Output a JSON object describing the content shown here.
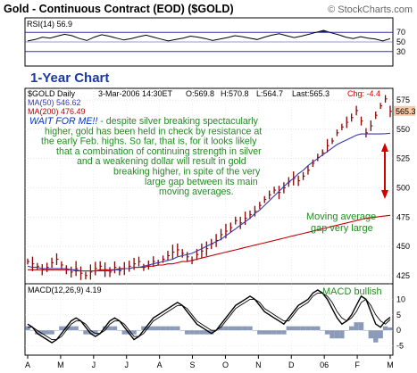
{
  "chart_data": {
    "type": "line",
    "title": "Gold - Continuous Contract (EOD) ($GOLD)",
    "watermark": "© StockCharts.com",
    "rsi": {
      "label": "RSI(14) 56.9",
      "ticks": [
        70,
        50,
        30
      ],
      "ylim": [
        0,
        100
      ],
      "values": [
        52,
        55,
        60,
        58,
        62,
        66,
        63,
        57,
        53,
        60,
        65,
        62,
        58,
        54,
        57,
        61,
        64,
        60,
        56,
        52,
        55,
        58,
        62,
        60,
        57,
        53,
        56,
        59,
        63,
        61,
        58,
        55,
        60,
        64,
        67,
        63,
        59,
        62,
        66,
        70,
        74,
        69,
        65,
        60,
        57,
        61,
        58,
        56,
        52,
        56.9
      ]
    },
    "price": {
      "period_label": "1-Year Chart",
      "info": {
        "symbol": "$GOLD Daily",
        "date": "3-Mar-2006 14:30ET",
        "open": "O:569.8",
        "high": "H:570.8",
        "low": "L:564.7",
        "last": "Last:565.3",
        "chg": "Chg: -4.4"
      },
      "ma50_label": "MA(50) 546.62",
      "ma200_label": "MA(200) 476.49",
      "last_price_label": "565.3",
      "ylim": [
        418,
        585
      ],
      "y_ticks": [
        425,
        450,
        475,
        500,
        525,
        550,
        575
      ],
      "close": [
        437,
        435,
        433,
        430,
        432,
        436,
        439,
        434,
        430,
        428,
        431,
        427,
        425,
        428,
        431,
        433,
        430,
        428,
        432,
        429,
        431,
        433,
        435,
        437,
        432,
        434,
        437,
        436,
        439,
        442,
        445,
        447,
        444,
        441,
        438,
        443,
        446,
        448,
        452,
        455,
        460,
        463,
        466,
        472,
        470,
        474,
        477,
        480,
        485,
        490,
        494,
        498,
        496,
        500,
        505,
        508,
        506,
        510,
        515,
        521,
        526,
        530,
        536,
        540,
        547,
        552,
        556,
        560,
        566,
        557,
        547,
        553,
        562,
        570,
        576,
        565.3
      ],
      "ma50": [
        433,
        432,
        432,
        431,
        431,
        431,
        431,
        431,
        431,
        430,
        430,
        429,
        429,
        429,
        429,
        429,
        429,
        429,
        430,
        430,
        431,
        431,
        432,
        432,
        433,
        434,
        435,
        436,
        437,
        438,
        439,
        441,
        442,
        443,
        444,
        446,
        448,
        450,
        452,
        454,
        456,
        459,
        462,
        465,
        468,
        471,
        474,
        478,
        481,
        485,
        489,
        493,
        497,
        501,
        505,
        508,
        512,
        515,
        519,
        522,
        525,
        528,
        531,
        534,
        537,
        539,
        541,
        543,
        545,
        546,
        546,
        546,
        546,
        546,
        546.3,
        546.62
      ],
      "ma200": [
        430,
        430,
        430,
        430,
        430,
        430,
        430,
        430,
        430,
        430,
        429,
        429,
        429,
        429,
        429,
        430,
        430,
        430,
        430,
        431,
        431,
        431,
        432,
        432,
        432,
        433,
        433,
        434,
        434,
        435,
        435,
        436,
        437,
        437,
        438,
        439,
        440,
        441,
        442,
        443,
        444,
        445,
        446,
        447,
        448,
        449,
        450,
        451,
        452,
        453,
        454,
        455,
        456,
        457,
        458,
        459,
        460,
        461,
        462,
        463,
        464,
        465,
        466,
        467,
        468,
        469,
        470,
        471,
        472,
        473,
        474,
        474.5,
        475,
        475.5,
        476,
        476.49
      ],
      "commentary_lines": [
        {
          "highlight": "WAIT FOR ME!!",
          "text": " - despite silver breaking spectacularly"
        },
        {
          "highlight": "",
          "text": "higher, gold has been held in check by resistance at"
        },
        {
          "highlight": "",
          "text": "the early Feb. highs. So far, that is, for it looks likely"
        },
        {
          "highlight": "",
          "text": "that a combination of continuing strength in silver"
        },
        {
          "highlight": "",
          "text": "and a weakening dollar will result in gold"
        },
        {
          "highlight": "",
          "text": "breaking higher, in spite of the very"
        },
        {
          "highlight": "",
          "text": "large gap between its main"
        },
        {
          "highlight": "",
          "text": "moving averages."
        }
      ],
      "annotation_gap": [
        "Moving average",
        "gap very large"
      ]
    },
    "macd": {
      "label": "MACD(12,26,9) 4.19",
      "annotation": "MACD bullish",
      "y_ticks": [
        10,
        5,
        0,
        -5
      ],
      "ylim": [
        -8,
        15
      ],
      "macd": [
        2,
        1,
        -1,
        -2,
        -3,
        -4,
        -3,
        -1,
        1,
        3,
        4,
        3,
        1,
        -1,
        -2,
        -1,
        1,
        3,
        4,
        3,
        1,
        -1,
        -3,
        -2,
        0,
        2,
        4,
        5,
        6,
        7,
        8,
        9,
        8,
        6,
        4,
        2,
        1,
        0,
        -1,
        0,
        2,
        4,
        6,
        8,
        9,
        10,
        11,
        10,
        8,
        6,
        5,
        4,
        3,
        2,
        4,
        6,
        8,
        9,
        10,
        12,
        13,
        12,
        10,
        7,
        4,
        2,
        3,
        5,
        8,
        11,
        10,
        6,
        2,
        1,
        3,
        4.19
      ],
      "signal": [
        1,
        1,
        0,
        -1,
        -2,
        -3,
        -3,
        -2,
        0,
        2,
        3,
        3,
        2,
        0,
        -1,
        -1,
        0,
        2,
        3,
        3,
        2,
        0,
        -2,
        -2,
        -1,
        1,
        3,
        4,
        5,
        6,
        7,
        8,
        8,
        7,
        5,
        3,
        2,
        1,
        0,
        0,
        1,
        3,
        5,
        7,
        8,
        9,
        10,
        10,
        9,
        7,
        6,
        5,
        4,
        3,
        3,
        5,
        7,
        8,
        9,
        11,
        12,
        12,
        11,
        9,
        6,
        4,
        3,
        4,
        6,
        9,
        10,
        8,
        5,
        3,
        2,
        3.5
      ],
      "hist": [
        1,
        0,
        -1,
        -1,
        -1,
        -1,
        0,
        1,
        1,
        1,
        1,
        0,
        -1,
        -1,
        -1,
        0,
        1,
        1,
        1,
        0,
        -1,
        -1,
        -1,
        0,
        1,
        1,
        1,
        1,
        1,
        1,
        1,
        1,
        0,
        -1,
        -1,
        -1,
        -1,
        -1,
        -1,
        0,
        1,
        1,
        1,
        1,
        1,
        1,
        1,
        0,
        -1,
        -1,
        -1,
        -1,
        -1,
        -1,
        1,
        1,
        1,
        1,
        1,
        1,
        1,
        0,
        -1,
        -2,
        -2,
        -2,
        0,
        1,
        2,
        2,
        0,
        -2,
        -3,
        -2,
        1,
        0.7
      ]
    },
    "x_tick_labels": [
      "A",
      "M",
      "J",
      "J",
      "A",
      "S",
      "O",
      "N",
      "D",
      "06",
      "F",
      "M"
    ],
    "colors": {
      "frame": "#000000",
      "rsi_line": "#000000",
      "rsi_fill": "#1a1a6e",
      "ref_lines": "#3333aa",
      "price_bars": "#8b0000",
      "ma50": "#3a3aa8",
      "ma200": "#c00000",
      "commentary_highlight": "#0033cc",
      "commentary_text": "#228b22",
      "annotation_text": "#228b22",
      "arrow": "#d40000",
      "period_label": "#1a3aa0",
      "macd_line": "#000000",
      "hist": "#8a9ab8"
    }
  }
}
